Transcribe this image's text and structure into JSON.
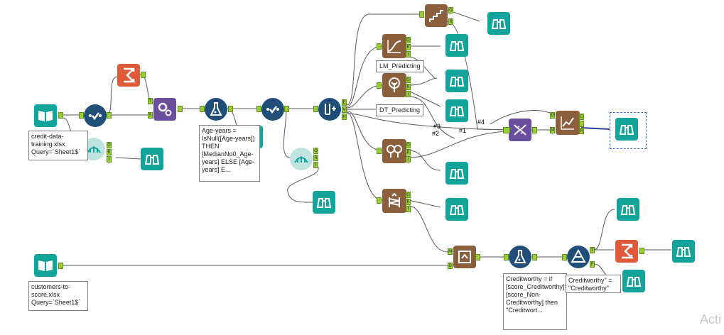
{
  "annotations": {
    "input1": "credit-data-training.xlsx\nQuery=`Sheet1$`",
    "formula1": "Age-years = IsNull([Age-years]) THEN [MedianNo0_Age-years] ELSE [Age-years] E...",
    "input2": "customers-to-score.xlsx\nQuery=`Sheet1$`",
    "formula2": "Creditworthy = if [score_Creditworthy]>[score_Non-Creditworthy] then \"Creditwort...",
    "filter_note": "Creditworthy\" = \"Creditworthy\""
  },
  "labels": {
    "lm": "LM_Predicting",
    "dt": "DT_Predicting"
  },
  "wire_tags": [
    "#3",
    "#2",
    "#1",
    "#4"
  ],
  "anchors": {
    "T": "T",
    "S": "S",
    "F": "F",
    "O": "O",
    "R": "R",
    "I": "I",
    "E": "E",
    "V": "V",
    "H": "H",
    "D": "D",
    "M": "M"
  },
  "watermark": "Acti",
  "colors": {
    "teal": "#12a39a",
    "navy": "#1f4e79",
    "brown": "#8b5e3c",
    "purple": "#6b4f9e",
    "orange": "#e05a3a",
    "anchor_green": "#9acd32",
    "wire": "#555555"
  },
  "icons": [
    "book-input-icon",
    "select-check-icon",
    "summarize-sigma-icon",
    "gear-join-icon",
    "formula-flask-icon",
    "browse-binoculars-icon",
    "field-summary-icon",
    "create-samples-icon",
    "linear-regression-icon",
    "decision-tree-icon",
    "forest-model-icon",
    "boosted-model-icon",
    "stepwise-icon",
    "union-dna-icon",
    "model-comparison-icon",
    "score-icon",
    "filter-icon"
  ]
}
